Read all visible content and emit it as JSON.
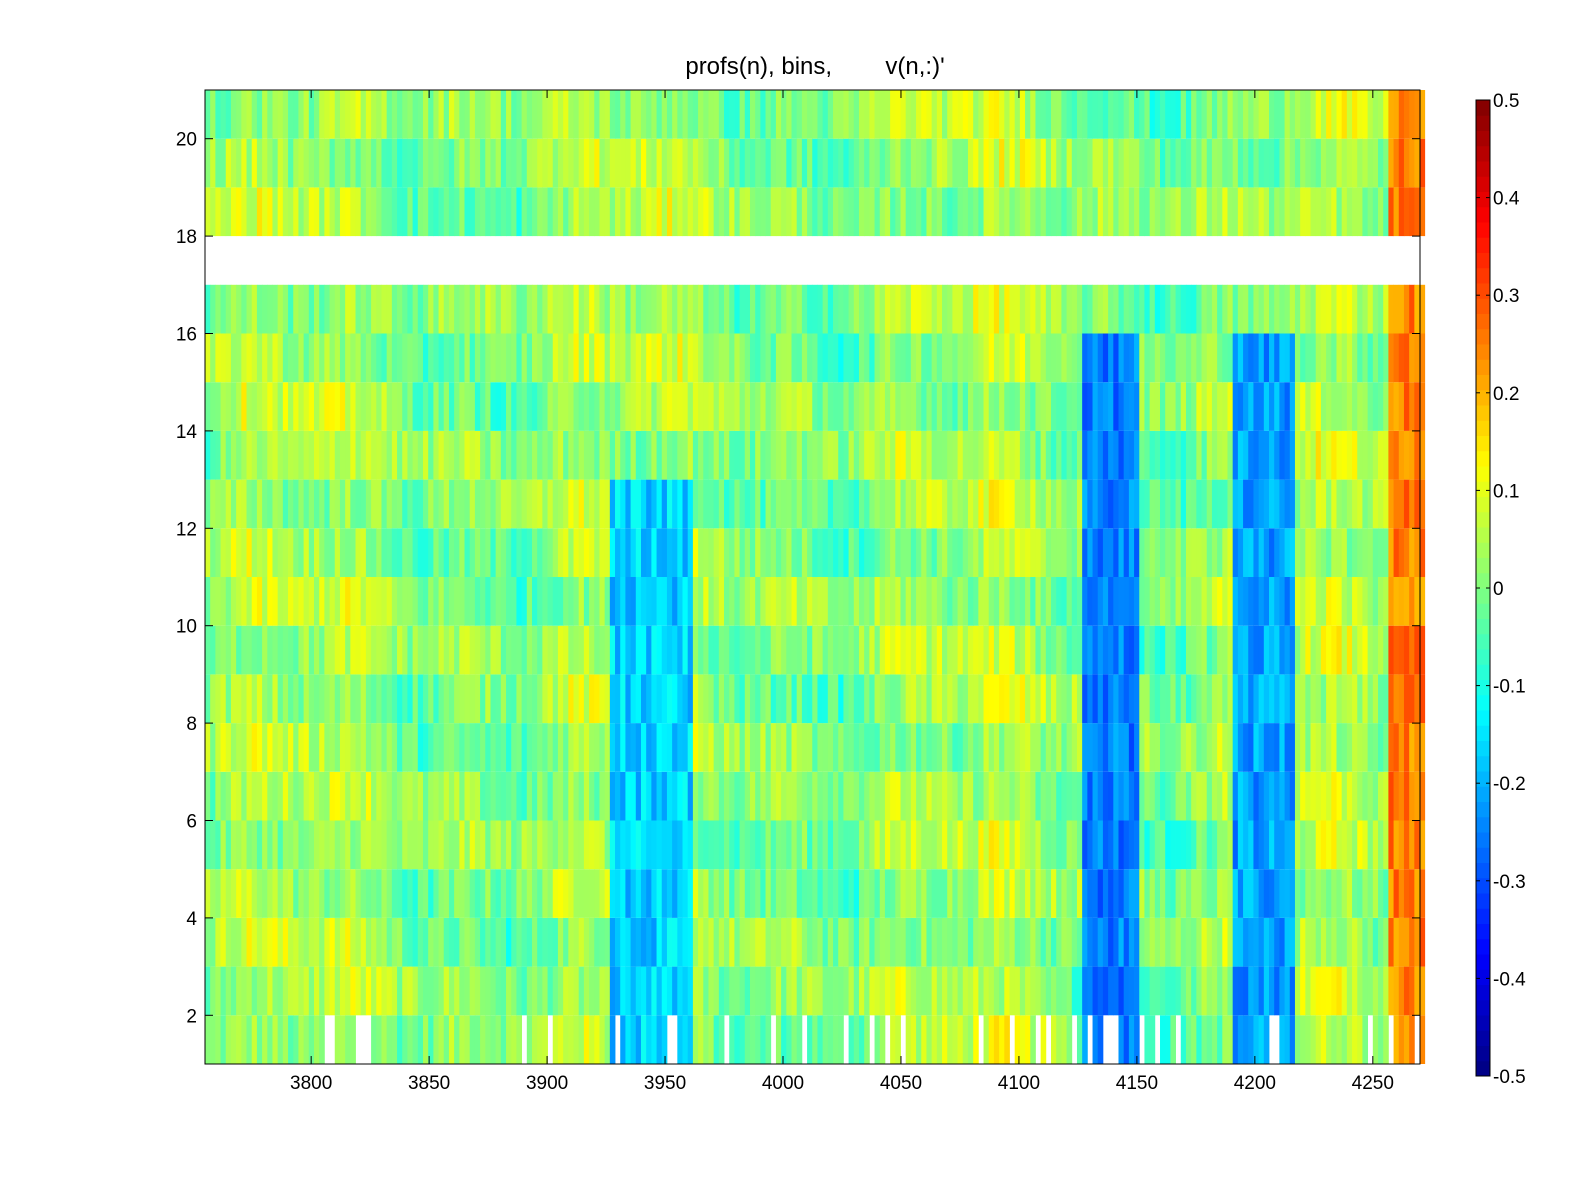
{
  "chart_data": {
    "type": "heatmap",
    "title": "profs(n), bins,        v(n,:)'",
    "xlabel": "",
    "ylabel": "",
    "colormap": "jet",
    "x_range": [
      3755,
      4270
    ],
    "y_range": [
      1,
      21
    ],
    "x_ticks": [
      3800,
      3850,
      3900,
      3950,
      4000,
      4050,
      4100,
      4150,
      4200,
      4250
    ],
    "x_tick_labels": [
      "3800",
      "3850",
      "3900",
      "3950",
      "4000",
      "4050",
      "4100",
      "4150",
      "4200",
      "4250"
    ],
    "y_ticks": [
      2,
      4,
      6,
      8,
      10,
      12,
      14,
      16,
      18,
      20
    ],
    "y_tick_labels": [
      "2",
      "4",
      "6",
      "8",
      "10",
      "12",
      "14",
      "16",
      "18",
      "20"
    ],
    "missing_rows": [
      17
    ],
    "colorbar": {
      "range": [
        -0.5,
        0.5
      ],
      "ticks": [
        -0.5,
        -0.4,
        -0.3,
        -0.2,
        -0.1,
        0,
        0.1,
        0.2,
        0.3,
        0.4,
        0.5
      ],
      "tick_labels": [
        "-0.5",
        "-0.4",
        "-0.3",
        "-0.2",
        "-0.1",
        "0",
        "0.1",
        "0.2",
        "0.3",
        "0.4",
        "0.5"
      ]
    },
    "approximate_features": [
      {
        "x_range": [
          4125,
          4150
        ],
        "rows": [
          1,
          16
        ],
        "value": -0.25
      },
      {
        "x_range": [
          4190,
          4215
        ],
        "rows": [
          1,
          16
        ],
        "value": -0.22
      },
      {
        "x_range": [
          3925,
          3960
        ],
        "rows": [
          1,
          13
        ],
        "value": -0.17
      },
      {
        "x_range": [
          4255,
          4270
        ],
        "rows": [
          1,
          21
        ],
        "value": 0.25
      }
    ]
  }
}
